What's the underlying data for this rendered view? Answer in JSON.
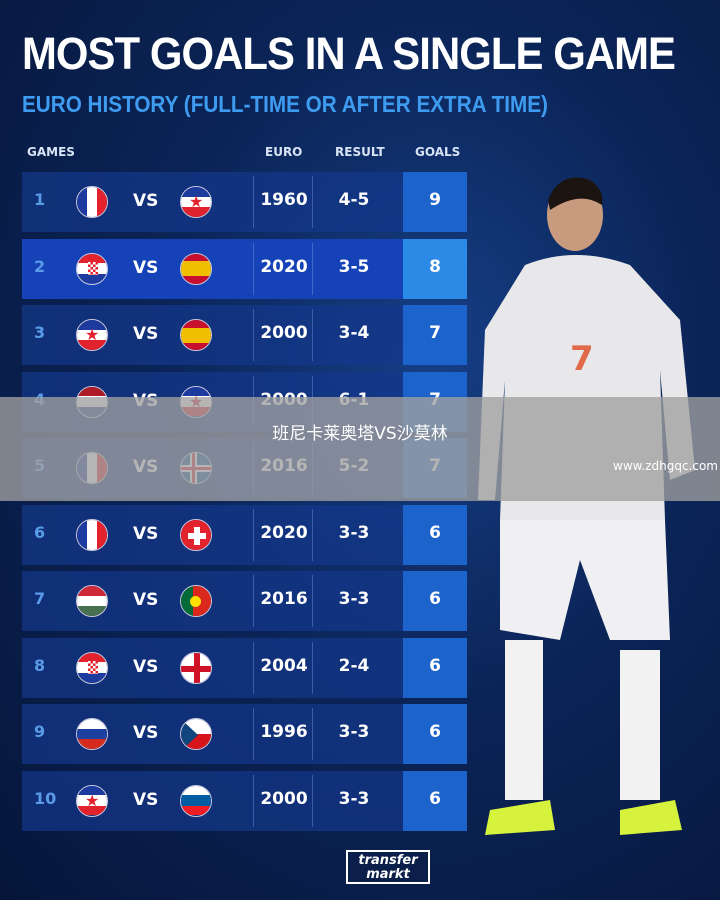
{
  "title": "MOST GOALS IN A SINGLE GAME",
  "subtitle": "EURO HISTORY (FULL-TIME OR AFTER EXTRA TIME)",
  "headers": {
    "games": "GAMES",
    "euro": "EURO",
    "result": "RESULT",
    "goals": "GOALS"
  },
  "vs_label": "VS",
  "rows": [
    {
      "rank": "1",
      "home": "france",
      "away": "yugoslavia",
      "euro": "1960",
      "result": "4-5",
      "goals": "9"
    },
    {
      "rank": "2",
      "home": "croatia",
      "away": "spain",
      "euro": "2020",
      "result": "3-5",
      "goals": "8"
    },
    {
      "rank": "3",
      "home": "yugoslavia",
      "away": "spain",
      "euro": "2000",
      "result": "3-4",
      "goals": "7"
    },
    {
      "rank": "4",
      "home": "netherlands",
      "away": "yugoslavia",
      "euro": "2000",
      "result": "6-1",
      "goals": "7"
    },
    {
      "rank": "5",
      "home": "france",
      "away": "iceland",
      "euro": "2016",
      "result": "5-2",
      "goals": "7"
    },
    {
      "rank": "6",
      "home": "france",
      "away": "switzerland",
      "euro": "2020",
      "result": "3-3",
      "goals": "6"
    },
    {
      "rank": "7",
      "home": "hungary",
      "away": "portugal",
      "euro": "2016",
      "result": "3-3",
      "goals": "6"
    },
    {
      "rank": "8",
      "home": "croatia",
      "away": "england",
      "euro": "2004",
      "result": "2-4",
      "goals": "6"
    },
    {
      "rank": "9",
      "home": "russia",
      "away": "czech-republic",
      "euro": "1996",
      "result": "3-3",
      "goals": "6"
    },
    {
      "rank": "10",
      "home": "yugoslavia",
      "away": "slovenia",
      "euro": "2000",
      "result": "3-3",
      "goals": "6"
    }
  ],
  "player": {
    "shirt_number": "7"
  },
  "overlay": {
    "text": "班尼卡莱奥塔VS沙莫林",
    "url": "www.zdhgqc.com"
  },
  "logo": {
    "line1": "transfer",
    "line2": "markt"
  }
}
